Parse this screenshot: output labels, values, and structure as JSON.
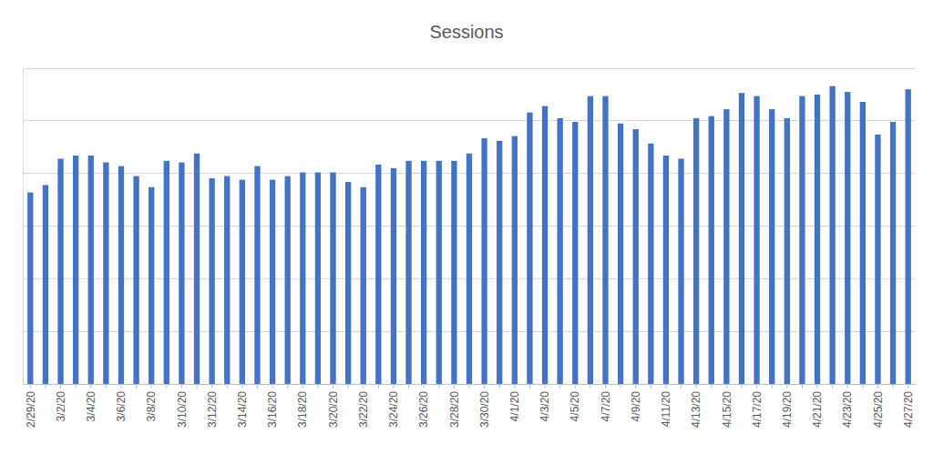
{
  "chart_data": {
    "type": "bar",
    "title": "Sessions",
    "categories": [
      "2/29/20",
      null,
      "3/2/20",
      null,
      "3/4/20",
      null,
      "3/6/20",
      null,
      "3/8/20",
      null,
      "3/10/20",
      null,
      "3/12/20",
      null,
      "3/14/20",
      null,
      "3/16/20",
      null,
      "3/18/20",
      null,
      "3/20/20",
      null,
      "3/22/20",
      null,
      "3/24/20",
      null,
      "3/26/20",
      null,
      "3/28/20",
      null,
      "3/30/20",
      null,
      "4/1/20",
      null,
      "4/3/20",
      null,
      "4/5/20",
      null,
      "4/7/20",
      null,
      "4/9/20",
      null,
      "4/11/20",
      null,
      "4/13/20",
      null,
      "4/15/20",
      null,
      "4/17/20",
      null,
      "4/19/20",
      null,
      "4/21/20",
      null,
      "4/23/20",
      null,
      "4/25/20",
      null,
      "4/27/20"
    ],
    "values": [
      3.64,
      3.78,
      4.28,
      4.34,
      4.34,
      4.21,
      4.14,
      3.95,
      3.74,
      4.24,
      4.21,
      4.38,
      3.91,
      3.95,
      3.88,
      4.14,
      3.88,
      3.95,
      4.02,
      4.02,
      4.02,
      3.84,
      3.74,
      4.17,
      4.1,
      4.24,
      4.24,
      4.24,
      4.24,
      4.38,
      4.67,
      4.62,
      4.71,
      5.16,
      5.28,
      5.05,
      4.98,
      5.47,
      5.47,
      4.95,
      4.84,
      4.57,
      4.34,
      4.28,
      5.05,
      5.09,
      5.22,
      5.53,
      5.47,
      5.22,
      5.05,
      5.47,
      5.5,
      5.66,
      5.55,
      5.36,
      4.74,
      4.98,
      5.6
    ],
    "color": "#4472c4",
    "ylim": [
      0,
      6
    ],
    "yticks": [
      0,
      1,
      2,
      3,
      4,
      5,
      6
    ],
    "grid": true,
    "tick_labels": "x"
  }
}
